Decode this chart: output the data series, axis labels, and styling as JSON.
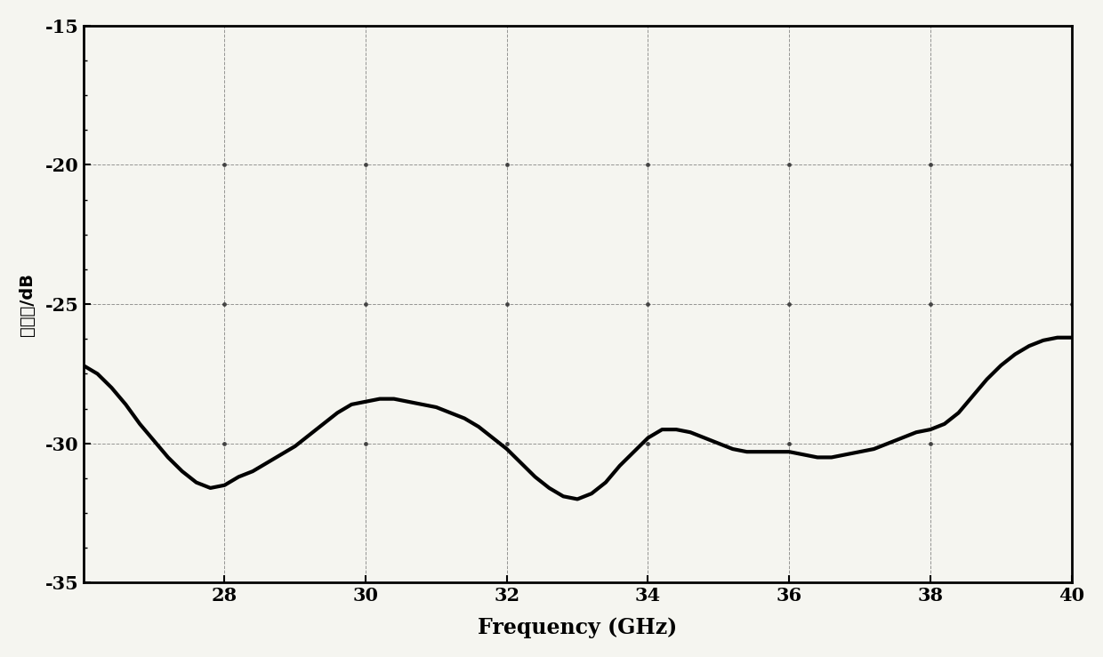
{
  "xlabel": "Frequency (GHz)",
  "ylabel": "反射率/dB",
  "xlim": [
    26,
    40
  ],
  "ylim": [
    -35,
    -15
  ],
  "xticks": [
    28,
    30,
    32,
    34,
    36,
    38,
    40
  ],
  "yticks": [
    -35,
    -30,
    -25,
    -20,
    -15
  ],
  "x": [
    26.0,
    26.2,
    26.4,
    26.6,
    26.8,
    27.0,
    27.2,
    27.4,
    27.6,
    27.8,
    28.0,
    28.2,
    28.4,
    28.6,
    28.8,
    29.0,
    29.2,
    29.4,
    29.6,
    29.8,
    30.0,
    30.2,
    30.4,
    30.6,
    30.8,
    31.0,
    31.2,
    31.4,
    31.6,
    31.8,
    32.0,
    32.2,
    32.4,
    32.6,
    32.8,
    33.0,
    33.2,
    33.4,
    33.6,
    33.8,
    34.0,
    34.2,
    34.4,
    34.6,
    34.8,
    35.0,
    35.2,
    35.4,
    35.6,
    35.8,
    36.0,
    36.2,
    36.4,
    36.6,
    36.8,
    37.0,
    37.2,
    37.4,
    37.6,
    37.8,
    38.0,
    38.2,
    38.4,
    38.6,
    38.8,
    39.0,
    39.2,
    39.4,
    39.6,
    39.8,
    40.0
  ],
  "y": [
    -27.2,
    -27.5,
    -28.0,
    -28.6,
    -29.3,
    -29.9,
    -30.5,
    -31.0,
    -31.4,
    -31.6,
    -31.5,
    -31.2,
    -31.0,
    -30.7,
    -30.4,
    -30.1,
    -29.7,
    -29.3,
    -28.9,
    -28.6,
    -28.5,
    -28.4,
    -28.4,
    -28.5,
    -28.6,
    -28.7,
    -28.9,
    -29.1,
    -29.4,
    -29.8,
    -30.2,
    -30.7,
    -31.2,
    -31.6,
    -31.9,
    -32.0,
    -31.8,
    -31.4,
    -30.8,
    -30.3,
    -29.8,
    -29.5,
    -29.5,
    -29.6,
    -29.8,
    -30.0,
    -30.2,
    -30.3,
    -30.3,
    -30.3,
    -30.3,
    -30.4,
    -30.5,
    -30.5,
    -30.4,
    -30.3,
    -30.2,
    -30.0,
    -29.8,
    -29.6,
    -29.5,
    -29.3,
    -28.9,
    -28.3,
    -27.7,
    -27.2,
    -26.8,
    -26.5,
    -26.3,
    -26.2,
    -26.2
  ],
  "line_color": "#000000",
  "line_width": 3.0,
  "grid_color": "#555555",
  "grid_alpha": 0.6,
  "xlabel_fontsize": 17,
  "ylabel_fontsize": 14,
  "tick_fontsize": 15,
  "bg_color": "#f5f5f0"
}
